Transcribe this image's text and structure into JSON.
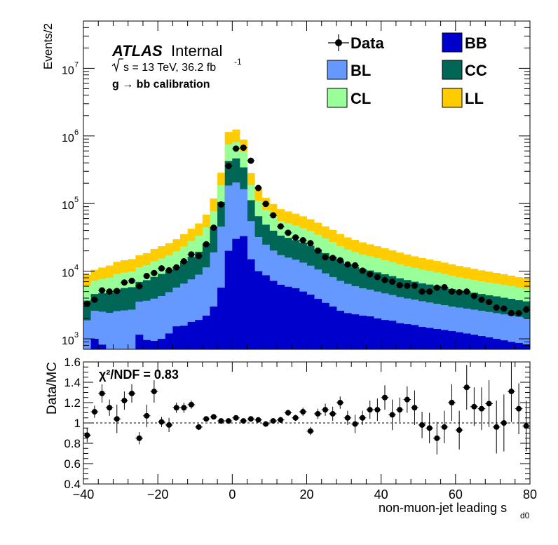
{
  "chart_data": [
    {
      "type": "bar",
      "stacked": true,
      "log_y": true,
      "ylabel": "Events/2",
      "ylim": [
        700,
        50000000
      ],
      "xlim": [
        -40,
        80
      ],
      "bin_width": 2,
      "bin_centers": [
        -39,
        -37,
        -35,
        -33,
        -31,
        -29,
        -27,
        -25,
        -23,
        -21,
        -19,
        -17,
        -15,
        -13,
        -11,
        -9,
        -7,
        -5,
        -3,
        -1,
        1,
        3,
        5,
        7,
        9,
        11,
        13,
        15,
        17,
        19,
        21,
        23,
        25,
        27,
        29,
        31,
        33,
        35,
        37,
        39,
        41,
        43,
        45,
        47,
        49,
        51,
        53,
        55,
        57,
        59,
        61,
        63,
        65,
        67,
        69,
        71,
        73,
        75,
        77,
        79
      ],
      "y_ticks": [
        {
          "base": "10",
          "exp": "3",
          "value": 1000
        },
        {
          "base": "10",
          "exp": "4",
          "value": 10000
        },
        {
          "base": "10",
          "exp": "5",
          "value": 100000
        },
        {
          "base": "10",
          "exp": "6",
          "value": 1000000
        },
        {
          "base": "10",
          "exp": "7",
          "value": 10000000
        }
      ],
      "series": [
        {
          "name": "BB",
          "color": "#0000cc",
          "values": [
            480,
            1000,
            820,
            620,
            570,
            530,
            500,
            1150,
            960,
            930,
            1000,
            1200,
            1530,
            1560,
            1780,
            1900,
            2200,
            3000,
            5700,
            20000,
            30000,
            33000,
            15000,
            10000,
            8700,
            7200,
            6300,
            5900,
            5600,
            5000,
            4500,
            3900,
            3400,
            3000,
            2600,
            2400,
            2300,
            2200,
            2150,
            2000,
            1900,
            1850,
            1700,
            1650,
            1600,
            1500,
            1450,
            1400,
            1350,
            1300,
            1250,
            1200,
            1150,
            1100,
            1050,
            1000,
            950,
            900,
            870,
            830
          ]
        },
        {
          "name": "BL",
          "color": "#6699ff",
          "values": [
            1400,
            1600,
            1700,
            1800,
            2000,
            2100,
            2200,
            2400,
            2700,
            3000,
            3300,
            3700,
            4200,
            5000,
            5800,
            7000,
            9200,
            16000,
            40000,
            165000,
            175000,
            130000,
            40000,
            22000,
            16000,
            13000,
            11000,
            10000,
            9200,
            8400,
            7600,
            6700,
            5900,
            5200,
            4600,
            4100,
            3700,
            3400,
            3200,
            3000,
            2800,
            2600,
            2450,
            2300,
            2200,
            2100,
            2000,
            1900,
            1800,
            1700,
            1650,
            1600,
            1550,
            1500,
            1450,
            1400,
            1350,
            1300,
            1250,
            1200
          ]
        },
        {
          "name": "CC",
          "color": "#006655",
          "values": [
            1800,
            2000,
            2200,
            2400,
            2800,
            3000,
            3100,
            3400,
            3700,
            4300,
            4800,
            5300,
            6000,
            7200,
            8700,
            10500,
            14200,
            25000,
            60000,
            240000,
            260000,
            180000,
            57000,
            33000,
            24000,
            19500,
            16300,
            15200,
            14000,
            13000,
            11700,
            10400,
            9200,
            8100,
            7000,
            6200,
            5700,
            5200,
            4900,
            4600,
            4300,
            4000,
            3700,
            3450,
            3200,
            3000,
            2900,
            2750,
            2600,
            2450,
            2300,
            2200,
            2100,
            2000,
            1900,
            1850,
            1750,
            1700,
            1600,
            1550
          ]
        },
        {
          "name": "CL",
          "color": "#99ff99",
          "values": [
            2300,
            2600,
            2900,
            3200,
            3700,
            3900,
            4100,
            4500,
            4900,
            5800,
            6300,
            6900,
            7900,
            9500,
            11600,
            14000,
            19000,
            33000,
            80000,
            320000,
            350000,
            240000,
            75000,
            44000,
            32000,
            26000,
            21700,
            20000,
            18500,
            17000,
            15300,
            13600,
            12000,
            10700,
            9300,
            8200,
            7500,
            6900,
            6400,
            6000,
            5600,
            5200,
            4800,
            4500,
            4200,
            3950,
            3750,
            3550,
            3350,
            3150,
            2950,
            2800,
            2650,
            2500,
            2400,
            2300,
            2200,
            2100,
            2000,
            1950
          ]
        },
        {
          "name": "LL",
          "color": "#ffcc00",
          "values": [
            2900,
            3300,
            3700,
            4100,
            4700,
            5000,
            5200,
            5700,
            6200,
            7300,
            8000,
            8800,
            10000,
            12000,
            14500,
            17500,
            24000,
            42000,
            100000,
            400000,
            430000,
            300000,
            95000,
            56000,
            41000,
            33000,
            27500,
            25500,
            23500,
            21500,
            19500,
            17500,
            15500,
            13800,
            12000,
            10700,
            9800,
            9000,
            8300,
            7800,
            7200,
            6700,
            6200,
            5800,
            5400,
            5100,
            4800,
            4550,
            4300,
            4050,
            3800,
            3600,
            3400,
            3200,
            3050,
            2900,
            2750,
            2600,
            2450,
            2300
          ]
        }
      ],
      "data": {
        "name": "Data",
        "values": [
          3300,
          3800,
          5200,
          5000,
          5100,
          6800,
          7200,
          6000,
          8500,
          9400,
          11000,
          10300,
          11400,
          14000,
          17700,
          16800,
          25000,
          44000,
          97000,
          360000,
          650000,
          670000,
          430000,
          170000,
          99000,
          67000,
          46000,
          37000,
          31500,
          28700,
          26000,
          20200,
          16100,
          15700,
          14500,
          12600,
          12200,
          10200,
          9000,
          8200,
          7400,
          7000,
          6200,
          6100,
          6100,
          5000,
          5000,
          5700,
          5800,
          5000,
          4900,
          5000,
          4300,
          3800,
          3500,
          2900,
          2800,
          2400,
          2400,
          2700
        ]
      },
      "legend": [
        {
          "label": "Data",
          "kind": "marker",
          "color": "#000000"
        },
        {
          "label": "BB",
          "kind": "box",
          "color": "#0000cc"
        },
        {
          "label": "BL",
          "kind": "box",
          "color": "#6699ff"
        },
        {
          "label": "CC",
          "kind": "box",
          "color": "#006655"
        },
        {
          "label": "CL",
          "kind": "box",
          "color": "#99ff99"
        },
        {
          "label": "LL",
          "kind": "box",
          "color": "#ffcc00"
        }
      ],
      "legend_placement": "top-right",
      "annotations": {
        "atlas": "ATLAS",
        "internal": "Internal",
        "sqrt_s": "s = 13 TeV, 36.2 fb",
        "lumi_exp": "-1",
        "calibration": "g  → bb calibration"
      }
    },
    {
      "type": "scatter",
      "ylabel": "Data/MC",
      "xlabel_main": "non-muon-jet leading s",
      "xlabel_sub": "d0",
      "xlim": [
        -40,
        80
      ],
      "ylim": [
        0.4,
        1.6
      ],
      "y_ticks": [
        "0.4",
        "0.6",
        "0.8",
        "1",
        "1.2",
        "1.4",
        "1.6"
      ],
      "x_ticks": [
        "−40",
        "−20",
        "0",
        "20",
        "40",
        "60",
        "80"
      ],
      "reference_line": 1,
      "chi2_label": "χ²/NDF = 0.83",
      "x": [
        -39,
        -37,
        -35,
        -33,
        -31,
        -29,
        -27,
        -25,
        -23,
        -21,
        -19,
        -17,
        -15,
        -13,
        -11,
        -9,
        -7,
        -5,
        -3,
        -1,
        1,
        3,
        5,
        7,
        9,
        11,
        13,
        15,
        17,
        19,
        21,
        23,
        25,
        27,
        29,
        31,
        33,
        35,
        37,
        39,
        41,
        43,
        45,
        47,
        49,
        51,
        53,
        55,
        57,
        59,
        61,
        63,
        65,
        67,
        69,
        71,
        73,
        75,
        77,
        79
      ],
      "values": [
        0.88,
        1.11,
        1.29,
        1.15,
        1.04,
        1.22,
        1.29,
        0.85,
        1.07,
        1.31,
        1.01,
        0.98,
        1.15,
        1.15,
        1.18,
        0.96,
        1.04,
        1.06,
        1.02,
        1.02,
        1.05,
        1.02,
        1.04,
        1.03,
        0.99,
        1.02,
        1.03,
        1.1,
        1.05,
        1.11,
        0.92,
        1.09,
        1.13,
        1.09,
        1.2,
        1.05,
        0.99,
        1.05,
        1.13,
        1.13,
        1.25,
        1.08,
        1.13,
        1.23,
        1.15,
        0.98,
        0.95,
        0.85,
        0.96,
        1.2,
        0.93,
        1.35,
        1.16,
        1.14,
        1.19,
        0.96,
        1.0,
        1.31,
        1.14,
        0.97
      ],
      "errors": [
        0.07,
        0.06,
        0.09,
        0.08,
        0.14,
        0.09,
        0.09,
        0.06,
        0.11,
        0.11,
        0.05,
        0.07,
        0.05,
        0.05,
        0.04,
        0.03,
        0.02,
        0.02,
        0.01,
        0.01,
        0.01,
        0.01,
        0.01,
        0.01,
        0.02,
        0.02,
        0.03,
        0.03,
        0.03,
        0.04,
        0.04,
        0.05,
        0.06,
        0.07,
        0.06,
        0.07,
        0.09,
        0.07,
        0.09,
        0.11,
        0.12,
        0.15,
        0.12,
        0.13,
        0.17,
        0.13,
        0.15,
        0.16,
        0.16,
        0.18,
        0.19,
        0.22,
        0.19,
        0.21,
        0.23,
        0.26,
        0.28,
        0.3,
        0.25,
        0.25
      ]
    }
  ]
}
